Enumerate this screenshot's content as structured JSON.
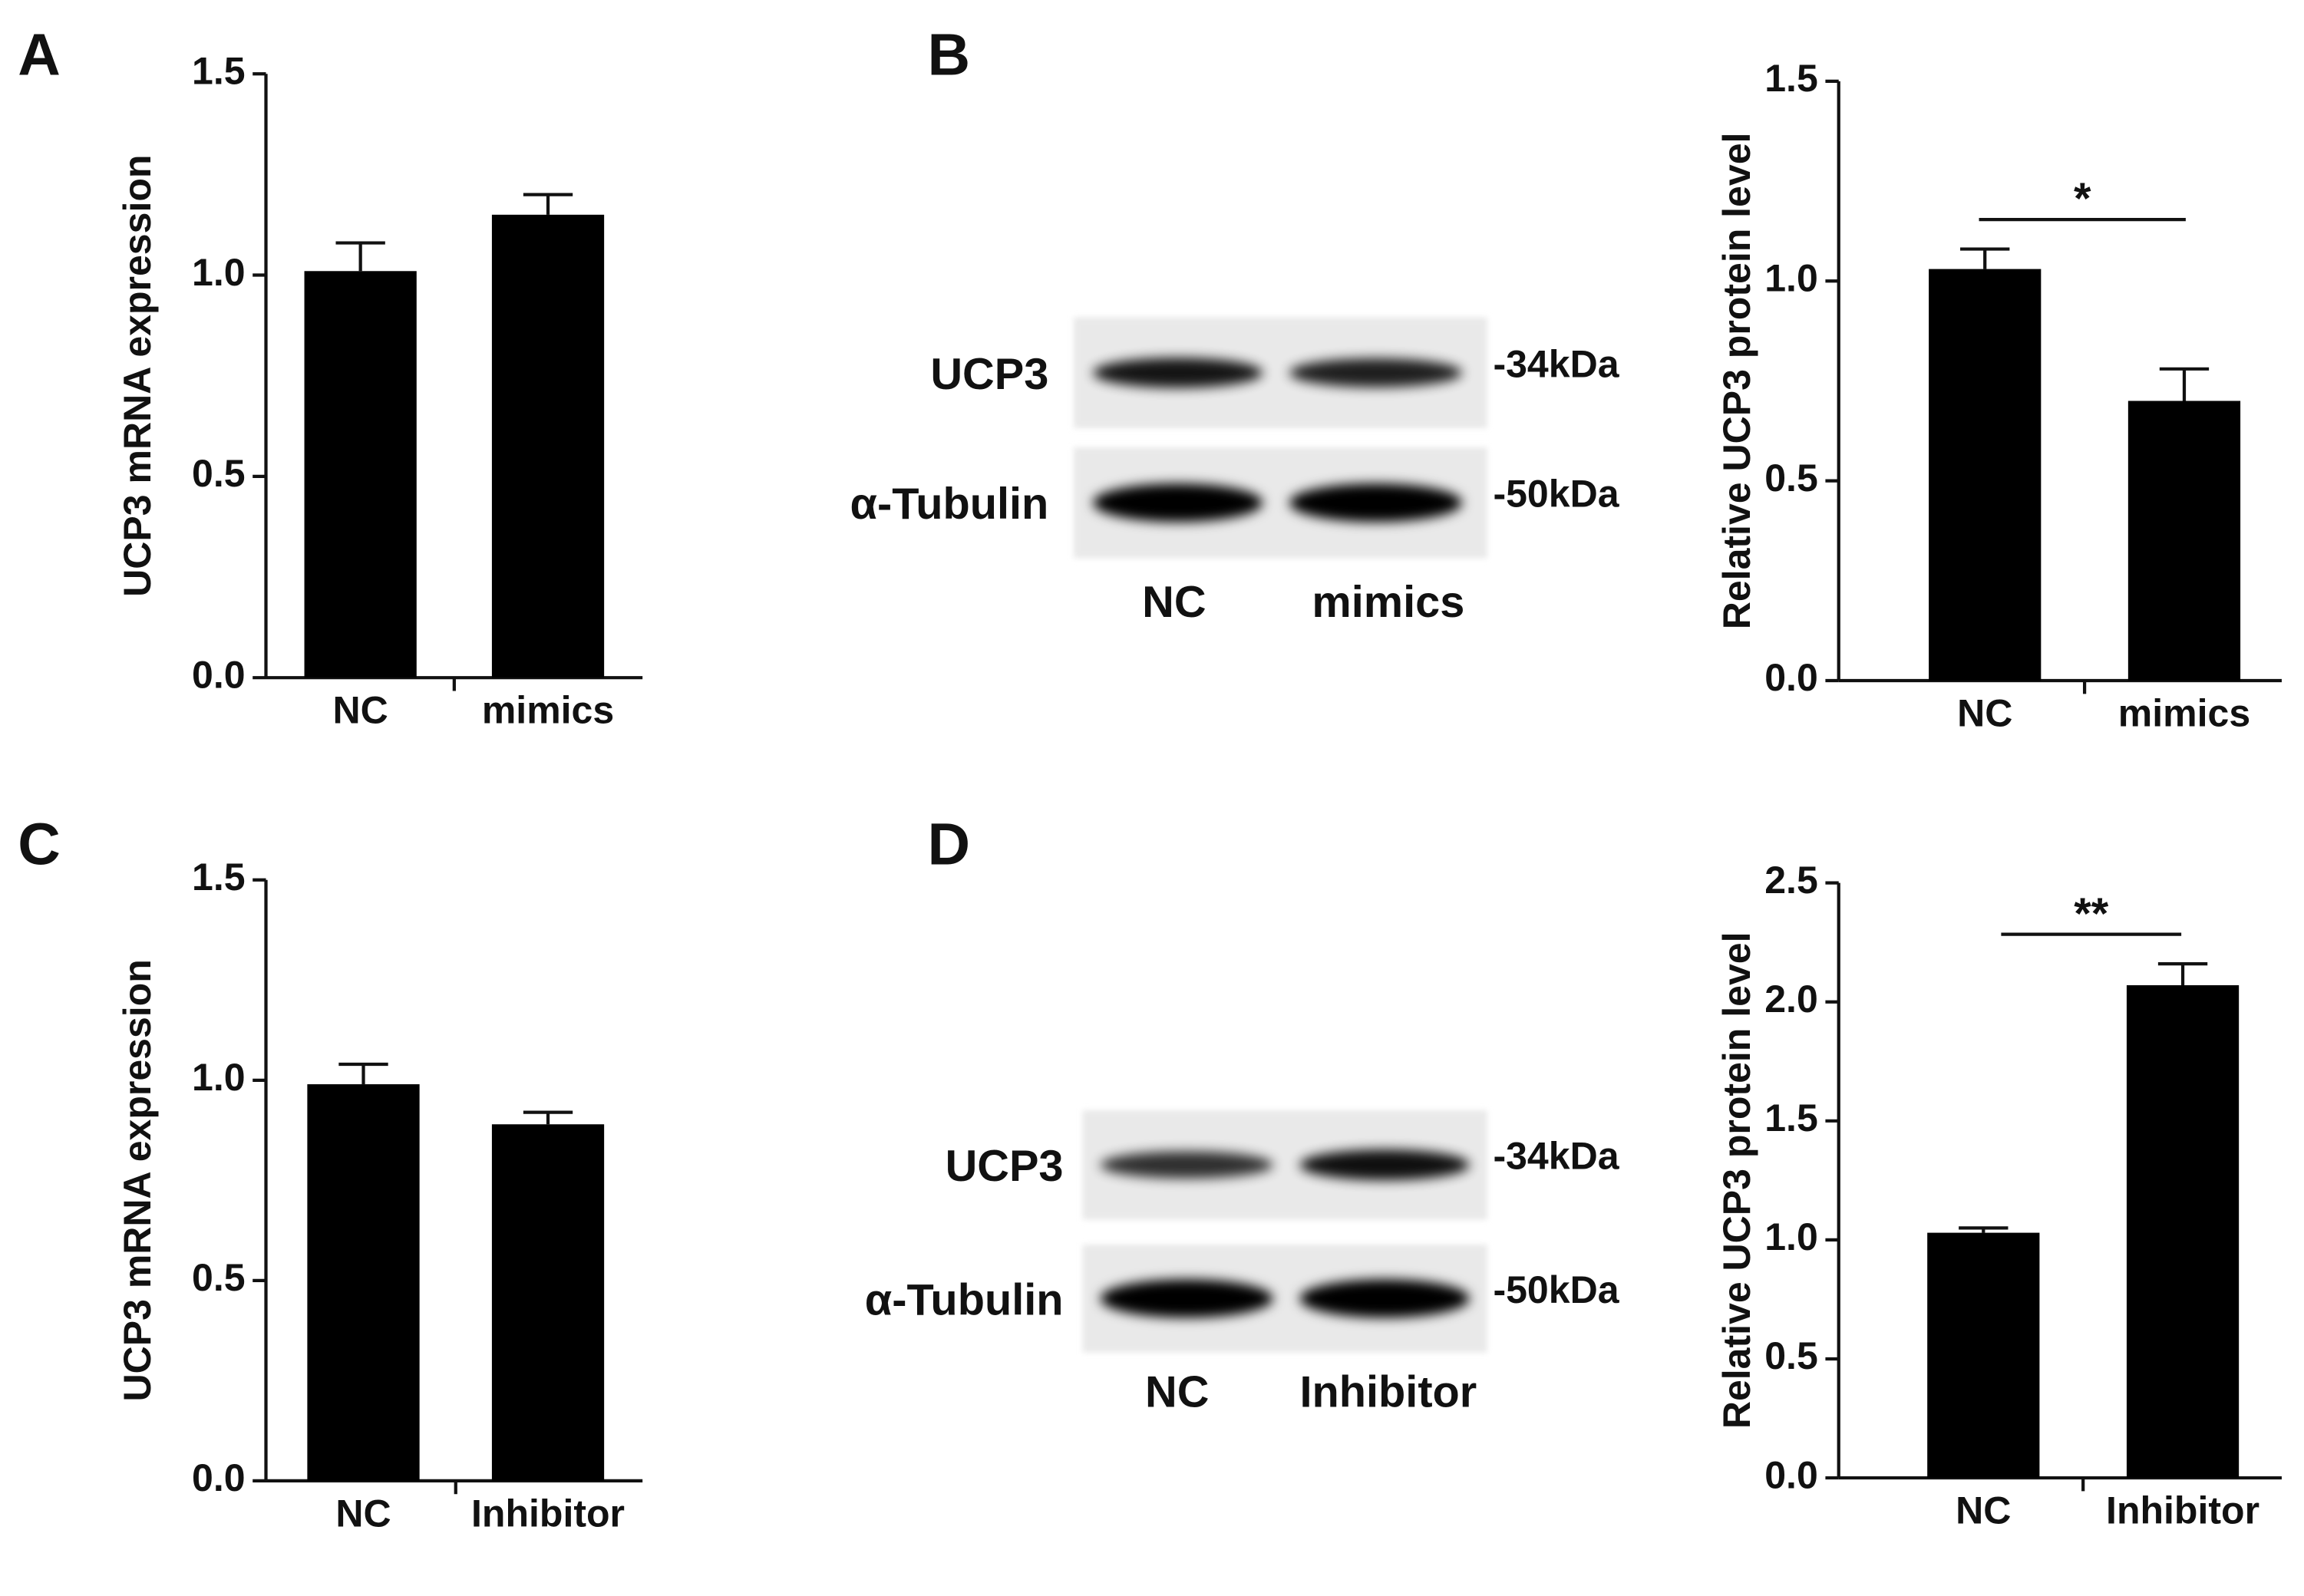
{
  "chart_data": [
    {
      "type": "bar",
      "panel": "A",
      "ylabel": "UCP3 mRNA expression",
      "categories": [
        "NC",
        "mimics"
      ],
      "values": [
        1.01,
        1.15
      ],
      "errors": [
        0.07,
        0.05
      ],
      "color": "#000000",
      "ylim": [
        0,
        1.5
      ],
      "yticks": [
        {
          "value": 0,
          "label": "0.0"
        },
        0.5,
        {
          "value": 1,
          "label": "1.0"
        },
        1.5
      ]
    },
    {
      "type": "bar",
      "panel": "B",
      "ylabel": "Relative UCP3 protein level",
      "categories": [
        "NC",
        "mimics"
      ],
      "values": [
        1.03,
        0.7
      ],
      "errors": [
        0.05,
        0.08
      ],
      "color": "#000000",
      "ylim": [
        0,
        1.5
      ],
      "yticks": [
        {
          "value": 0,
          "label": "0.0"
        },
        0.5,
        {
          "value": 1,
          "label": "1.0"
        },
        1.5
      ],
      "annotation": "*"
    },
    {
      "type": "bar",
      "panel": "C",
      "ylabel": "UCP3 mRNA expression",
      "categories": [
        "NC",
        "Inhibitor"
      ],
      "values": [
        0.99,
        0.89
      ],
      "errors": [
        0.05,
        0.03
      ],
      "color": "#000000",
      "ylim": [
        0,
        1.5
      ],
      "yticks": [
        {
          "value": 0,
          "label": "0.0"
        },
        0.5,
        {
          "value": 1,
          "label": "1.0"
        },
        1.5
      ]
    },
    {
      "type": "bar",
      "panel": "D",
      "ylabel": "Relative UCP3 protein level",
      "categories": [
        "NC",
        "Inhibitor"
      ],
      "values": [
        1.03,
        2.07
      ],
      "errors": [
        0.02,
        0.09
      ],
      "color": "#000000",
      "ylim": [
        0,
        2.5
      ],
      "yticks": [
        {
          "value": 0,
          "label": "0.0"
        },
        0.5,
        {
          "value": 1,
          "label": "1.0"
        },
        1.5,
        {
          "value": 2,
          "label": "2.0"
        },
        2.5
      ],
      "annotation": "**"
    }
  ],
  "blots": [
    {
      "lanes": [
        "NC",
        "mimics"
      ],
      "rows": [
        {
          "label": "UCP3",
          "marker": "-34kDa"
        },
        {
          "label": "α-Tubulin",
          "marker": "-50kDa"
        }
      ]
    },
    {
      "lanes": [
        "NC",
        "Inhibitor"
      ],
      "rows": [
        {
          "label": "UCP3",
          "marker": "-34kDa"
        },
        {
          "label": "α-Tubulin",
          "marker": "-50kDa"
        }
      ]
    }
  ]
}
